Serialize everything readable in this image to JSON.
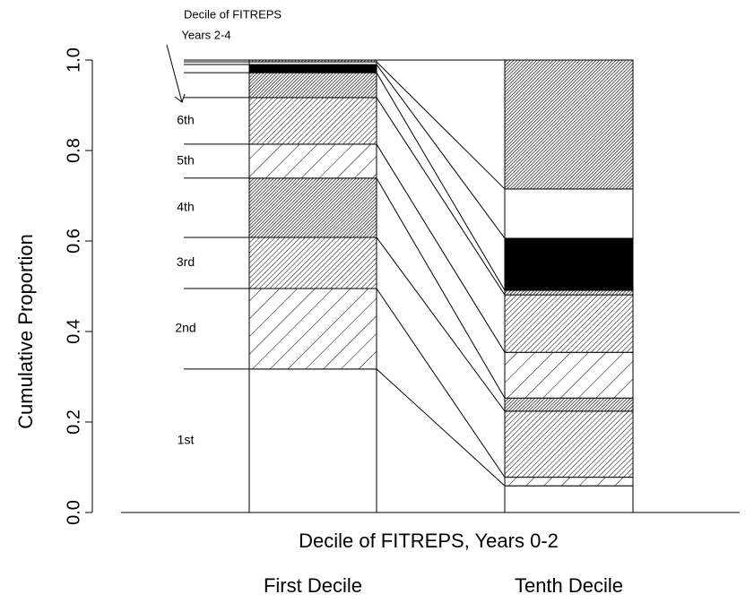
{
  "chart_data": {
    "type": "bar",
    "stacked": true,
    "annotation": [
      "Decile of FITREPS",
      "Years 2-4"
    ],
    "xlabel": "Decile of FITREPS, Years 0-2",
    "ylabel": "Cumulative Proportion",
    "categories": [
      "First Decile",
      "Tenth Decile"
    ],
    "ylim": [
      0,
      1
    ],
    "yticks": [
      {
        "value": 0,
        "label": "0.0"
      },
      0.2,
      0.4,
      0.6,
      0.8,
      {
        "value": 1,
        "label": "1.0"
      }
    ],
    "series": [
      {
        "name": "1st",
        "fill": "white",
        "values": [
          0.317,
          0.059
        ]
      },
      {
        "name": "2nd",
        "fill": "sparse",
        "values": [
          0.178,
          0.019
        ]
      },
      {
        "name": "3rd",
        "fill": "dense",
        "values": [
          0.113,
          0.146
        ]
      },
      {
        "name": "4th",
        "fill": "dark",
        "values": [
          0.131,
          0.029
        ]
      },
      {
        "name": "5th",
        "fill": "sparse",
        "values": [
          0.075,
          0.101
        ]
      },
      {
        "name": "6th",
        "fill": "dense",
        "values": [
          0.103,
          0.127
        ]
      },
      {
        "fill": "dark",
        "values": [
          0.055,
          0.01
        ]
      },
      {
        "fill": "black",
        "values": [
          0.018,
          0.115
        ]
      },
      {
        "fill": "white",
        "values": [
          0.006,
          0.109
        ]
      },
      {
        "fill": "dark",
        "values": [
          0.004,
          0.285
        ]
      }
    ]
  }
}
